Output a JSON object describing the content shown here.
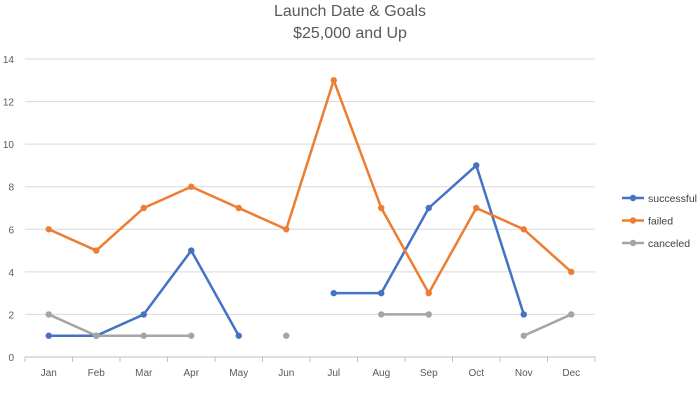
{
  "chart_data": {
    "type": "line",
    "title": "Launch Date & Goals",
    "subtitle": "$25,000 and Up",
    "xlabel": "",
    "ylabel": "",
    "categories": [
      "Jan",
      "Feb",
      "Mar",
      "Apr",
      "May",
      "Jun",
      "Jul",
      "Aug",
      "Sep",
      "Oct",
      "Nov",
      "Dec"
    ],
    "ylim": [
      0,
      14
    ],
    "yticks": [
      0,
      2,
      4,
      6,
      8,
      10,
      12,
      14
    ],
    "grid": true,
    "legend_position": "right",
    "series": [
      {
        "name": "successful",
        "color": "#4472C4",
        "values": [
          1,
          1,
          2,
          5,
          1,
          null,
          3,
          3,
          7,
          9,
          2,
          null
        ]
      },
      {
        "name": "failed",
        "color": "#ED7D31",
        "values": [
          6,
          5,
          7,
          8,
          7,
          6,
          13,
          7,
          3,
          7,
          6,
          4
        ]
      },
      {
        "name": "canceled",
        "color": "#A5A5A5",
        "values": [
          2,
          1,
          1,
          1,
          null,
          1,
          null,
          2,
          2,
          null,
          1,
          2
        ]
      }
    ]
  }
}
